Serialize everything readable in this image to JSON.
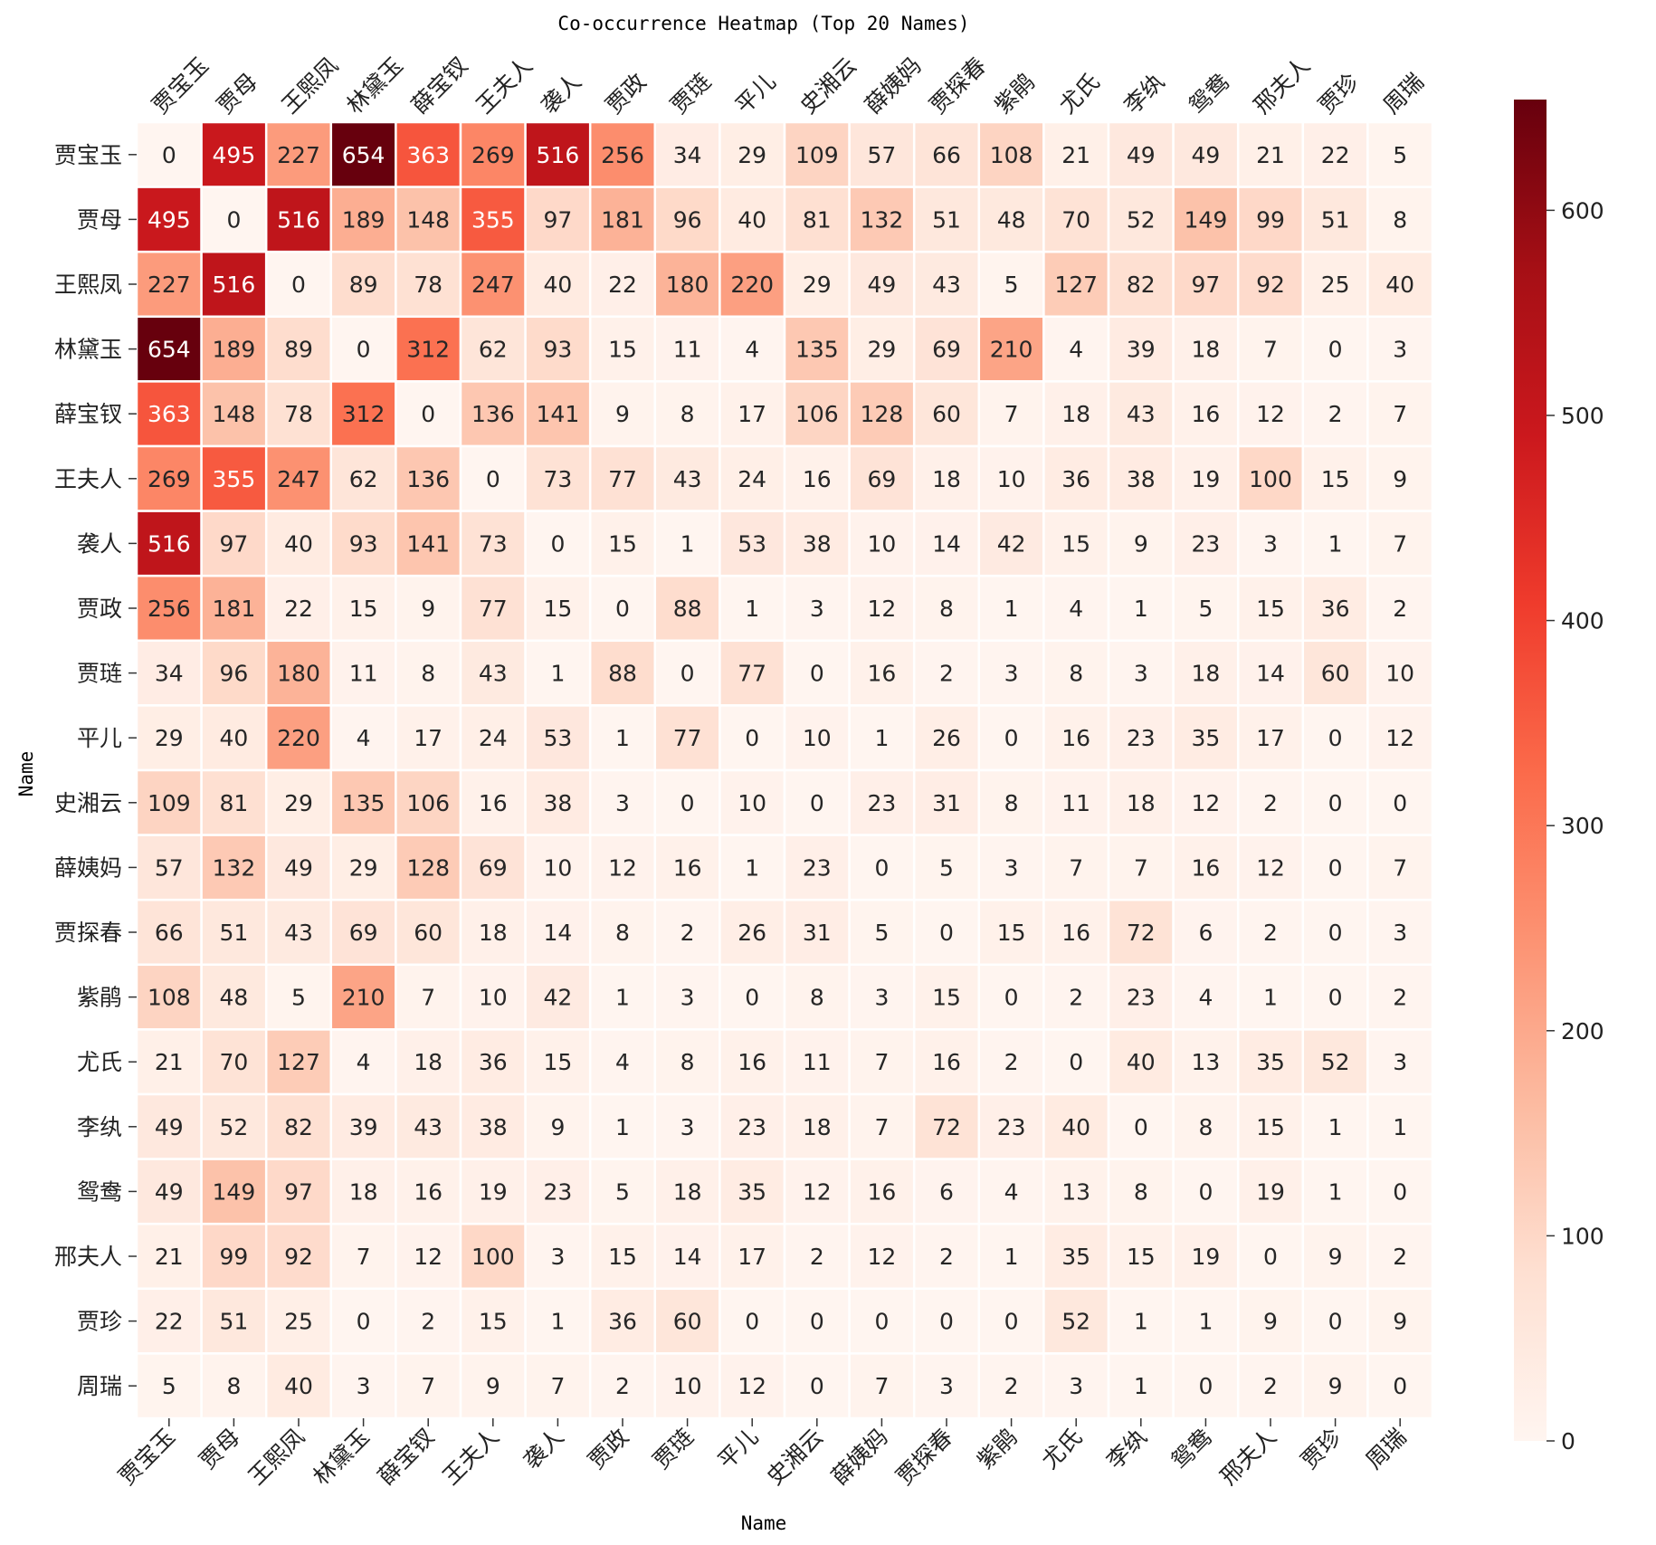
{
  "chart_data": {
    "type": "heatmap",
    "title": "Co-occurrence Heatmap (Top 20 Names)",
    "xlabel": "Name",
    "ylabel": "Name",
    "colormap": "Reds",
    "vmin": 0,
    "vmax": 654,
    "colorbar_ticks": [
      0,
      100,
      200,
      300,
      400,
      500,
      600
    ],
    "grid": true,
    "row_labels": [
      "贾宝玉",
      "贾母",
      "王熙凤",
      "林黛玉",
      "薛宝钗",
      "王夫人",
      "袭人",
      "贾政",
      "贾琏",
      "平儿",
      "史湘云",
      "薛姨妈",
      "贾探春",
      "紫鹃",
      "尤氏",
      "李纨",
      "鸳鸯",
      "邢夫人",
      "贾珍",
      "周瑞"
    ],
    "col_labels": [
      "贾宝玉",
      "贾母",
      "王熙凤",
      "林黛玉",
      "薛宝钗",
      "王夫人",
      "袭人",
      "贾政",
      "贾琏",
      "平儿",
      "史湘云",
      "薛姨妈",
      "贾探春",
      "紫鹃",
      "尤氏",
      "李纨",
      "鸳鸯",
      "邢夫人",
      "贾珍",
      "周瑞"
    ],
    "values": [
      [
        0,
        495,
        227,
        654,
        363,
        269,
        516,
        256,
        34,
        29,
        109,
        57,
        66,
        108,
        21,
        49,
        49,
        21,
        22,
        5
      ],
      [
        495,
        0,
        516,
        189,
        148,
        355,
        97,
        181,
        96,
        40,
        81,
        132,
        51,
        48,
        70,
        52,
        149,
        99,
        51,
        8
      ],
      [
        227,
        516,
        0,
        89,
        78,
        247,
        40,
        22,
        180,
        220,
        29,
        49,
        43,
        5,
        127,
        82,
        97,
        92,
        25,
        40
      ],
      [
        654,
        189,
        89,
        0,
        312,
        62,
        93,
        15,
        11,
        4,
        135,
        29,
        69,
        210,
        4,
        39,
        18,
        7,
        0,
        3
      ],
      [
        363,
        148,
        78,
        312,
        0,
        136,
        141,
        9,
        8,
        17,
        106,
        128,
        60,
        7,
        18,
        43,
        16,
        12,
        2,
        7
      ],
      [
        269,
        355,
        247,
        62,
        136,
        0,
        73,
        77,
        43,
        24,
        16,
        69,
        18,
        10,
        36,
        38,
        19,
        100,
        15,
        9
      ],
      [
        516,
        97,
        40,
        93,
        141,
        73,
        0,
        15,
        1,
        53,
        38,
        10,
        14,
        42,
        15,
        9,
        23,
        3,
        1,
        7
      ],
      [
        256,
        181,
        22,
        15,
        9,
        77,
        15,
        0,
        88,
        1,
        3,
        12,
        8,
        1,
        4,
        1,
        5,
        15,
        36,
        2
      ],
      [
        34,
        96,
        180,
        11,
        8,
        43,
        1,
        88,
        0,
        77,
        0,
        16,
        2,
        3,
        8,
        3,
        18,
        14,
        60,
        10
      ],
      [
        29,
        40,
        220,
        4,
        17,
        24,
        53,
        1,
        77,
        0,
        10,
        1,
        26,
        0,
        16,
        23,
        35,
        17,
        0,
        12
      ],
      [
        109,
        81,
        29,
        135,
        106,
        16,
        38,
        3,
        0,
        10,
        0,
        23,
        31,
        8,
        11,
        18,
        12,
        2,
        0,
        0
      ],
      [
        57,
        132,
        49,
        29,
        128,
        69,
        10,
        12,
        16,
        1,
        23,
        0,
        5,
        3,
        7,
        7,
        16,
        12,
        0,
        7
      ],
      [
        66,
        51,
        43,
        69,
        60,
        18,
        14,
        8,
        2,
        26,
        31,
        5,
        0,
        15,
        16,
        72,
        6,
        2,
        0,
        3
      ],
      [
        108,
        48,
        5,
        210,
        7,
        10,
        42,
        1,
        3,
        0,
        8,
        3,
        15,
        0,
        2,
        23,
        4,
        1,
        0,
        2
      ],
      [
        21,
        70,
        127,
        4,
        18,
        36,
        15,
        4,
        8,
        16,
        11,
        7,
        16,
        2,
        0,
        40,
        13,
        35,
        52,
        3
      ],
      [
        49,
        52,
        82,
        39,
        43,
        38,
        9,
        1,
        3,
        23,
        18,
        7,
        72,
        23,
        40,
        0,
        8,
        15,
        1,
        1
      ],
      [
        49,
        149,
        97,
        18,
        16,
        19,
        23,
        5,
        18,
        35,
        12,
        16,
        6,
        4,
        13,
        8,
        0,
        19,
        1,
        0
      ],
      [
        21,
        99,
        92,
        7,
        12,
        100,
        3,
        15,
        14,
        17,
        2,
        12,
        2,
        1,
        35,
        15,
        19,
        0,
        9,
        2
      ],
      [
        22,
        51,
        25,
        0,
        2,
        15,
        1,
        36,
        60,
        0,
        0,
        0,
        0,
        0,
        52,
        1,
        1,
        9,
        0,
        9
      ],
      [
        5,
        8,
        40,
        3,
        7,
        9,
        7,
        2,
        10,
        12,
        0,
        7,
        3,
        2,
        3,
        1,
        0,
        2,
        9,
        0
      ]
    ]
  }
}
